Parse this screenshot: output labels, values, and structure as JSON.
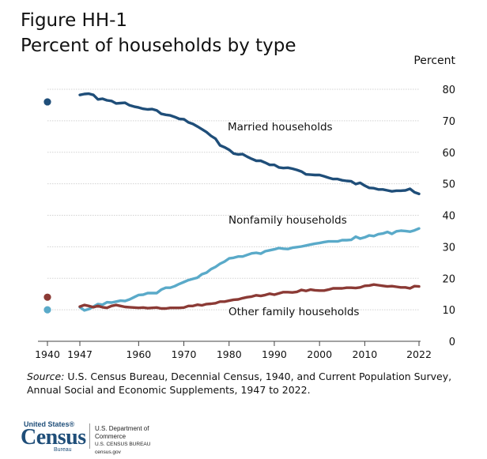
{
  "figure": {
    "label": "Figure HH-1",
    "title": "Percent of households by type"
  },
  "source": {
    "prefix": "Source:",
    "text": "U.S. Census Bureau, Decennial Census, 1940, and Current Population Survey, Annual Social and Economic Supplements, 1947 to 2022."
  },
  "logo": {
    "top": "United States®",
    "name": "Census",
    "bureau": "Bureau",
    "dept_line1": "U.S. Department of Commerce",
    "dept_line2": "U.S. CENSUS BUREAU",
    "dept_line3": "census.gov"
  },
  "colors": {
    "married": "#1f4e79",
    "nonfamily": "#5aaac9",
    "other": "#8b3a35"
  },
  "chart_data": {
    "type": "line",
    "ylabel": "Percent",
    "ylim": [
      0,
      80
    ],
    "yticks": [
      0,
      10,
      20,
      30,
      40,
      50,
      60,
      70,
      80
    ],
    "xticks": [
      1940,
      1947,
      1960,
      1970,
      1980,
      1990,
      2000,
      2010,
      2022
    ],
    "grid": true,
    "points_1940": [
      {
        "series": "Married households",
        "value": 76
      },
      {
        "series": "Other family households",
        "value": 14
      },
      {
        "series": "Nonfamily households",
        "value": 10
      }
    ],
    "series": [
      {
        "name": "Married households",
        "x": [
          1947,
          1948,
          1949,
          1950,
          1951,
          1952,
          1953,
          1954,
          1955,
          1956,
          1957,
          1958,
          1959,
          1960,
          1961,
          1962,
          1963,
          1964,
          1965,
          1966,
          1967,
          1968,
          1969,
          1970,
          1971,
          1972,
          1973,
          1974,
          1975,
          1976,
          1977,
          1978,
          1979,
          1980,
          1981,
          1982,
          1983,
          1984,
          1985,
          1986,
          1987,
          1988,
          1989,
          1990,
          1991,
          1992,
          1993,
          1994,
          1995,
          1996,
          1997,
          1998,
          1999,
          2000,
          2001,
          2002,
          2003,
          2004,
          2005,
          2006,
          2007,
          2008,
          2009,
          2010,
          2011,
          2012,
          2013,
          2014,
          2015,
          2016,
          2017,
          2018,
          2019,
          2020,
          2021,
          2022
        ],
        "values": [
          78.2,
          78.5,
          78.6,
          78.2,
          76.8,
          77.0,
          76.5,
          76.3,
          75.5,
          75.6,
          75.7,
          74.9,
          74.5,
          74.2,
          73.8,
          73.6,
          73.7,
          73.3,
          72.2,
          71.9,
          71.7,
          71.2,
          70.6,
          70.5,
          69.5,
          69.0,
          68.2,
          67.3,
          66.4,
          65.2,
          64.3,
          62.2,
          61.6,
          60.8,
          59.6,
          59.3,
          59.4,
          58.6,
          57.9,
          57.3,
          57.3,
          56.7,
          56.0,
          56.0,
          55.2,
          55.0,
          55.1,
          54.8,
          54.4,
          53.9,
          53.0,
          52.9,
          52.8,
          52.8,
          52.4,
          51.9,
          51.5,
          51.5,
          51.1,
          50.9,
          50.8,
          49.9,
          50.3,
          49.4,
          48.7,
          48.6,
          48.2,
          48.2,
          47.9,
          47.6,
          47.8,
          47.8,
          47.9,
          48.4,
          47.3,
          46.8
        ]
      },
      {
        "name": "Nonfamily households",
        "x": [
          1947,
          1948,
          1949,
          1950,
          1951,
          1952,
          1953,
          1954,
          1955,
          1956,
          1957,
          1958,
          1959,
          1960,
          1961,
          1962,
          1963,
          1964,
          1965,
          1966,
          1967,
          1968,
          1969,
          1970,
          1971,
          1972,
          1973,
          1974,
          1975,
          1976,
          1977,
          1978,
          1979,
          1980,
          1981,
          1982,
          1983,
          1984,
          1985,
          1986,
          1987,
          1988,
          1989,
          1990,
          1991,
          1992,
          1993,
          1994,
          1995,
          1996,
          1997,
          1998,
          1999,
          2000,
          2001,
          2002,
          2003,
          2004,
          2005,
          2006,
          2007,
          2008,
          2009,
          2010,
          2011,
          2012,
          2013,
          2014,
          2015,
          2016,
          2017,
          2018,
          2019,
          2020,
          2021,
          2022
        ],
        "values": [
          10.8,
          9.8,
          10.2,
          11.0,
          11.8,
          11.6,
          12.4,
          12.3,
          12.6,
          12.9,
          12.8,
          13.3,
          14.0,
          14.7,
          14.8,
          15.3,
          15.3,
          15.3,
          16.4,
          17.0,
          17.0,
          17.5,
          18.2,
          18.8,
          19.4,
          19.8,
          20.2,
          21.3,
          21.8,
          22.9,
          23.6,
          24.6,
          25.3,
          26.3,
          26.5,
          26.9,
          26.9,
          27.4,
          27.9,
          28.1,
          27.8,
          28.6,
          28.9,
          29.2,
          29.6,
          29.4,
          29.3,
          29.7,
          29.9,
          30.1,
          30.4,
          30.7,
          31.0,
          31.2,
          31.5,
          31.7,
          31.7,
          31.7,
          32.1,
          32.1,
          32.2,
          33.2,
          32.6,
          33.0,
          33.6,
          33.4,
          34.0,
          34.2,
          34.7,
          34.1,
          34.9,
          35.1,
          35.0,
          34.8,
          35.2,
          35.8
        ]
      },
      {
        "name": "Other family households",
        "x": [
          1947,
          1948,
          1949,
          1950,
          1951,
          1952,
          1953,
          1954,
          1955,
          1956,
          1957,
          1958,
          1959,
          1960,
          1961,
          1962,
          1963,
          1964,
          1965,
          1966,
          1967,
          1968,
          1969,
          1970,
          1971,
          1972,
          1973,
          1974,
          1975,
          1976,
          1977,
          1978,
          1979,
          1980,
          1981,
          1982,
          1983,
          1984,
          1985,
          1986,
          1987,
          1988,
          1989,
          1990,
          1991,
          1992,
          1993,
          1994,
          1995,
          1996,
          1997,
          1998,
          1999,
          2000,
          2001,
          2002,
          2003,
          2004,
          2005,
          2006,
          2007,
          2008,
          2009,
          2010,
          2011,
          2012,
          2013,
          2014,
          2015,
          2016,
          2017,
          2018,
          2019,
          2020,
          2021,
          2022
        ],
        "values": [
          11.0,
          11.5,
          11.2,
          10.8,
          11.2,
          10.8,
          10.6,
          11.2,
          11.5,
          11.2,
          10.9,
          10.8,
          10.7,
          10.6,
          10.7,
          10.5,
          10.6,
          10.7,
          10.4,
          10.4,
          10.6,
          10.6,
          10.6,
          10.7,
          11.2,
          11.2,
          11.6,
          11.4,
          11.8,
          11.9,
          12.1,
          12.6,
          12.6,
          12.9,
          13.2,
          13.3,
          13.7,
          14.0,
          14.2,
          14.6,
          14.4,
          14.7,
          15.1,
          14.8,
          15.2,
          15.6,
          15.6,
          15.5,
          15.7,
          16.3,
          16.0,
          16.4,
          16.2,
          16.1,
          16.1,
          16.4,
          16.8,
          16.8,
          16.8,
          17.0,
          17.0,
          16.9,
          17.1,
          17.6,
          17.7,
          18.0,
          17.8,
          17.6,
          17.4,
          17.5,
          17.3,
          17.1,
          17.1,
          16.8,
          17.5,
          17.4
        ]
      }
    ],
    "annotations": [
      {
        "text": "Married households",
        "series": "Married households"
      },
      {
        "text": "Nonfamily households",
        "series": "Nonfamily households"
      },
      {
        "text": "Other family households",
        "series": "Other family households"
      }
    ]
  }
}
